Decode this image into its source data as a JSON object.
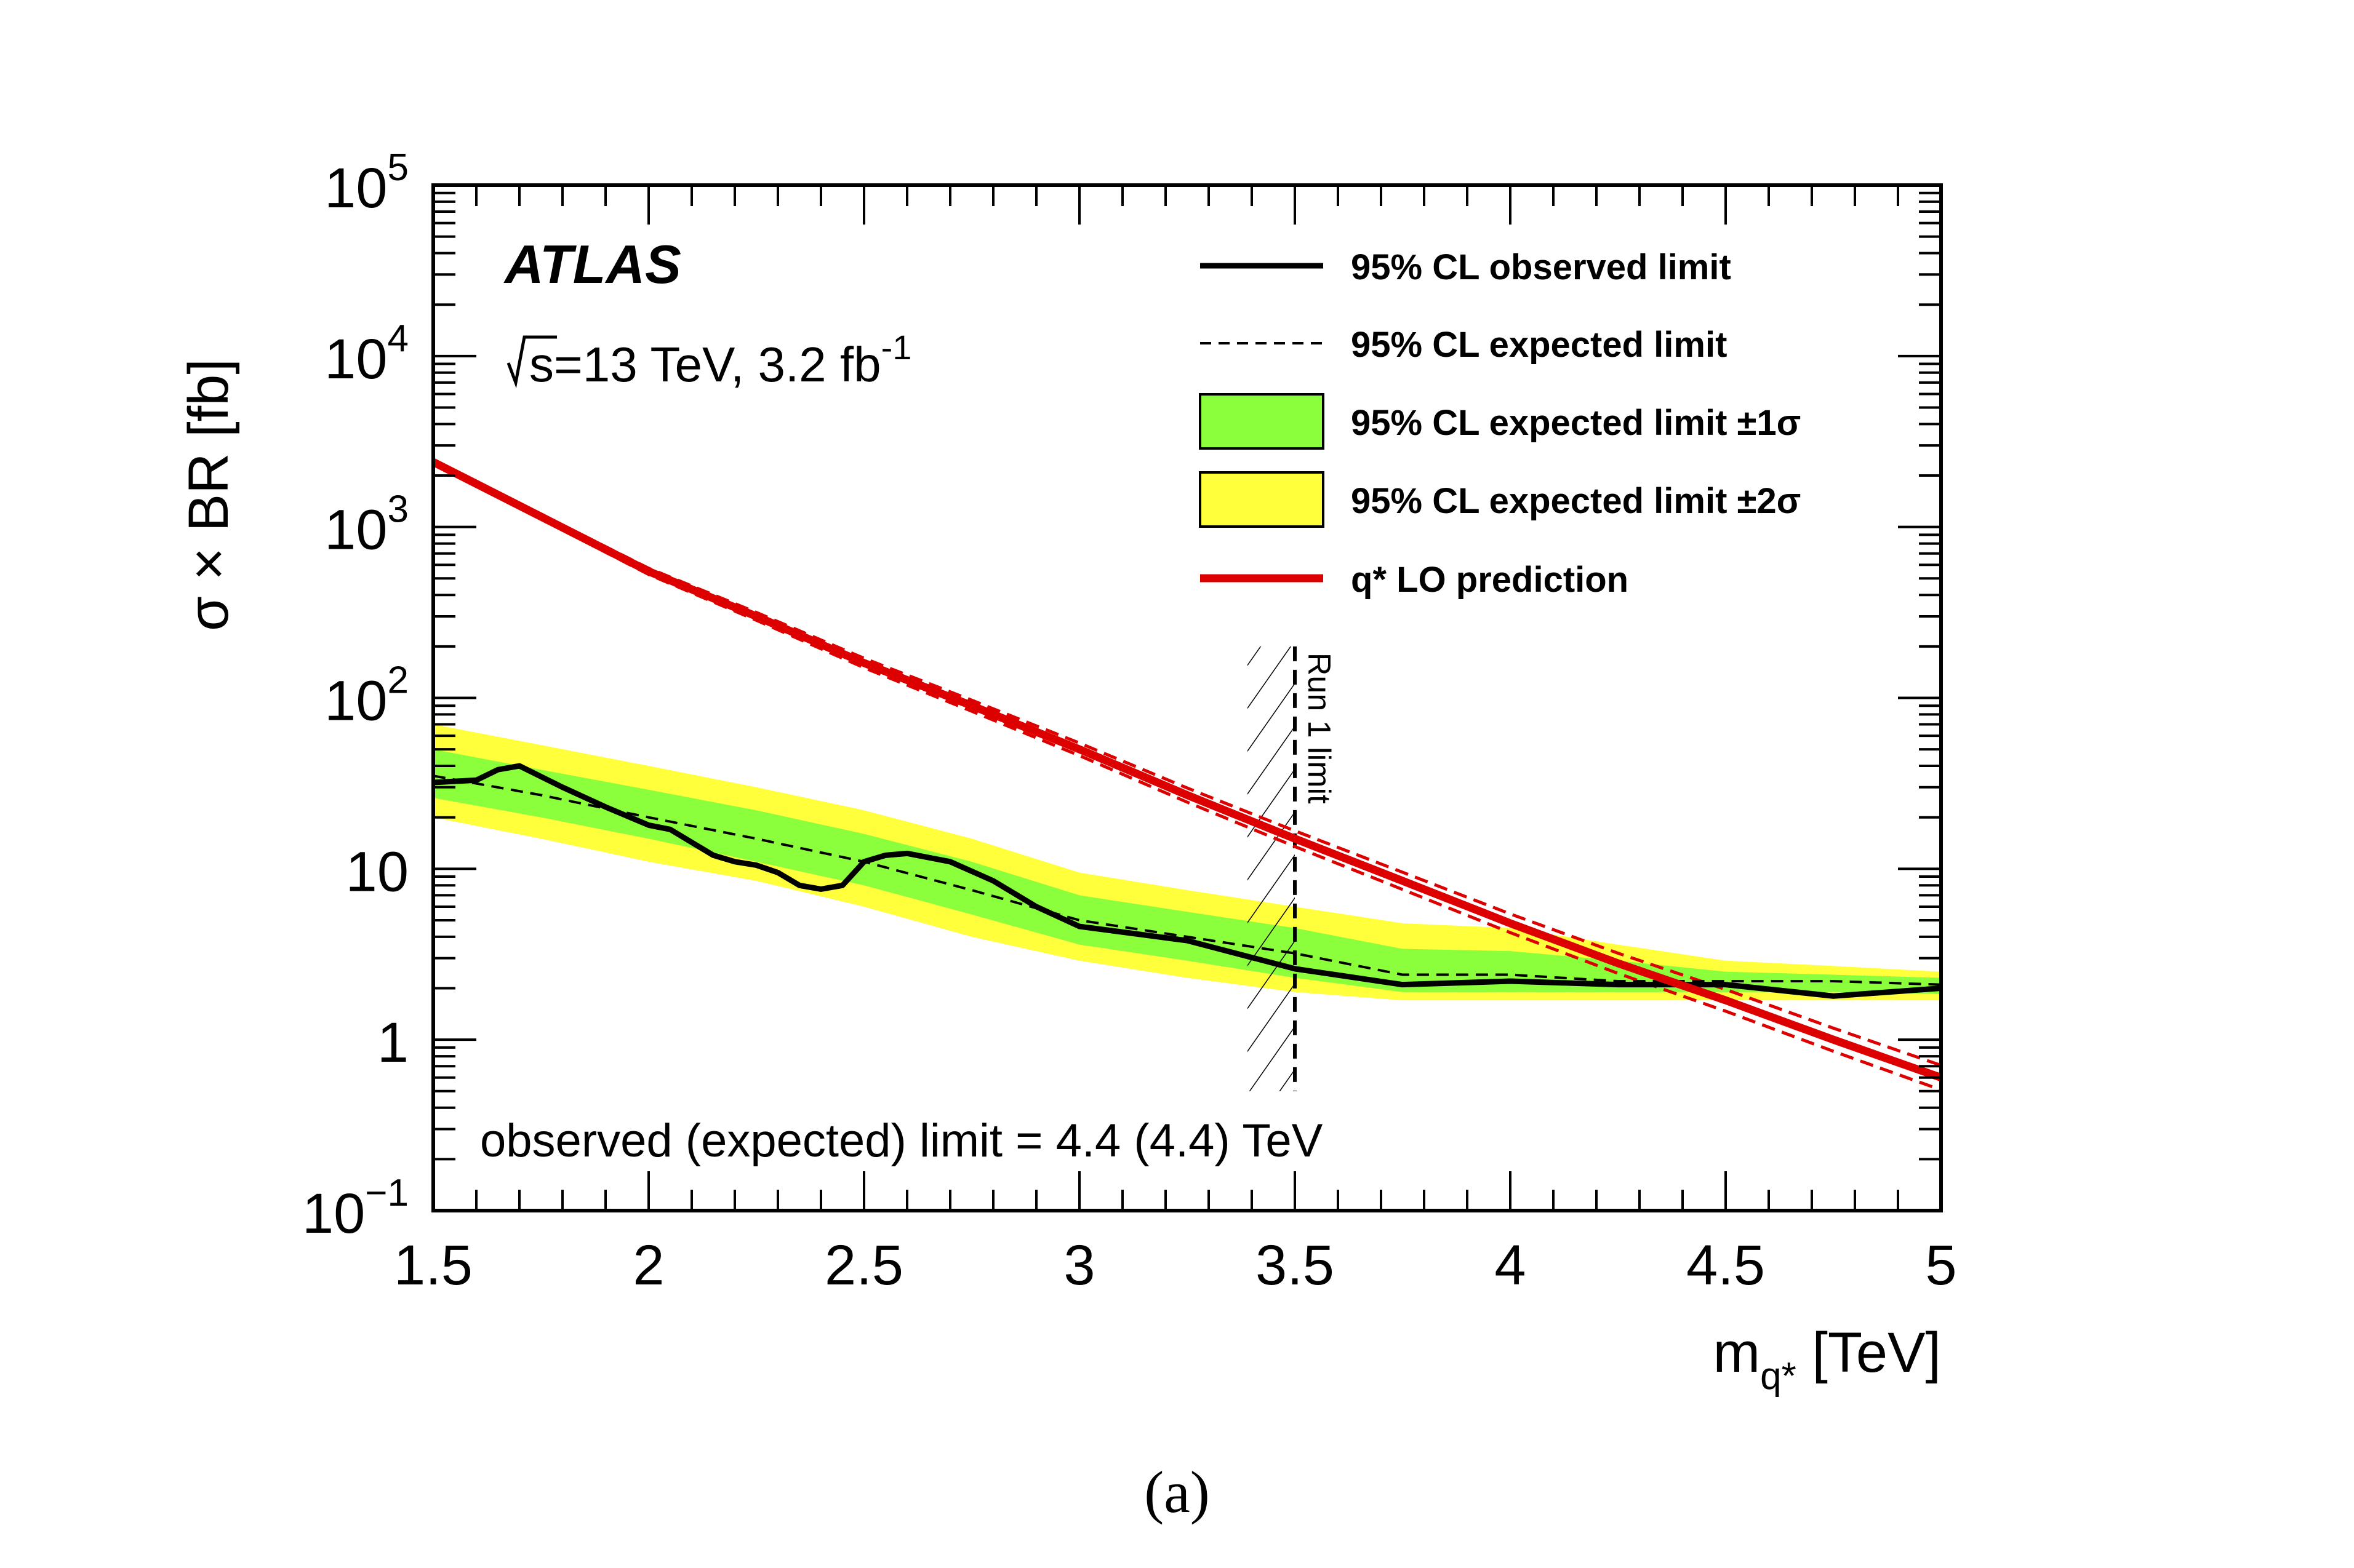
{
  "chart_data": {
    "type": "line",
    "title": "",
    "experiment_label": "ATLAS",
    "energy_label_prefix": "s",
    "energy_label_rest": "=13 TeV, 3.2 fb",
    "energy_label_sup": "-1",
    "xlabel_main": "m",
    "xlabel_sub": "q*",
    "xlabel_unit": " [TeV]",
    "ylabel": "σ × BR [fb]",
    "xlim": [
      1.5,
      5.0
    ],
    "ylim": [
      0.1,
      100000
    ],
    "yscale": "log",
    "x_ticks": [
      "1.5",
      "2",
      "2.5",
      "3",
      "3.5",
      "4",
      "4.5",
      "5"
    ],
    "x_tick_values": [
      1.5,
      2.0,
      2.5,
      3.0,
      3.5,
      4.0,
      4.5,
      5.0
    ],
    "y_ticks": [
      {
        "value": 100000,
        "base": "10",
        "exp": "5"
      },
      {
        "value": 10000,
        "base": "10",
        "exp": "4"
      },
      {
        "value": 1000,
        "base": "10",
        "exp": "3"
      },
      {
        "value": 100,
        "base": "10",
        "exp": "2"
      },
      {
        "value": 10,
        "base": "10",
        "exp": ""
      },
      {
        "value": 1,
        "base": "1",
        "exp": ""
      },
      {
        "value": 0.1,
        "base": "10",
        "exp": "−1"
      }
    ],
    "annotation": "observed (expected) limit = 4.4 (4.4) TeV",
    "run1_label": "Run 1 limit",
    "run1_band": [
      3.39,
      3.5
    ],
    "legend": [
      {
        "label": "95% CL observed limit",
        "style": "solid-black"
      },
      {
        "label": "95% CL expected limit",
        "style": "dashed-black"
      },
      {
        "label": "95% CL expected limit ±1σ",
        "style": "green-box"
      },
      {
        "label": "95% CL expected limit ±2σ",
        "style": "yellow-box"
      },
      {
        "label": "q* LO prediction",
        "style": "solid-red"
      }
    ],
    "legend_position": "top-right",
    "colors": {
      "observed": "#000000",
      "expected": "#000000",
      "band1": "#8cff3c",
      "band2": "#ffff3c",
      "theory": "#dd0000"
    },
    "series": [
      {
        "name": "95% CL observed limit",
        "x": [
          1.5,
          1.6,
          1.65,
          1.7,
          1.8,
          1.9,
          2.0,
          2.05,
          2.15,
          2.2,
          2.25,
          2.3,
          2.35,
          2.4,
          2.45,
          2.5,
          2.55,
          2.6,
          2.7,
          2.8,
          2.9,
          3.0,
          3.25,
          3.5,
          3.75,
          4.0,
          4.25,
          4.5,
          4.75,
          5.0
        ],
        "y": [
          32,
          33,
          38,
          40,
          30,
          23,
          18,
          17,
          12,
          11,
          10.5,
          9.5,
          8,
          7.6,
          8,
          11,
          12,
          12.3,
          11,
          8.5,
          6,
          4.6,
          3.8,
          2.6,
          2.1,
          2.2,
          2.1,
          2.1,
          1.8,
          2.0
        ]
      },
      {
        "name": "95% CL expected limit",
        "x": [
          1.5,
          1.75,
          2.0,
          2.25,
          2.5,
          2.75,
          3.0,
          3.25,
          3.5,
          3.75,
          4.0,
          4.25,
          4.5,
          4.75,
          5.0
        ],
        "y": [
          35,
          27,
          20,
          15,
          11,
          7.5,
          5.0,
          4.0,
          3.2,
          2.4,
          2.4,
          2.2,
          2.2,
          2.2,
          2.1
        ]
      },
      {
        "name": "+1σ",
        "x": [
          1.5,
          1.75,
          2.0,
          2.25,
          2.5,
          2.75,
          3.0,
          3.25,
          3.5,
          3.75,
          4.0,
          4.25,
          4.5,
          4.75,
          5.0
        ],
        "y": [
          50,
          38,
          29,
          22,
          16,
          11,
          7.0,
          5.6,
          4.5,
          3.4,
          3.3,
          2.9,
          2.5,
          2.4,
          2.3
        ]
      },
      {
        "name": "-1σ",
        "x": [
          1.5,
          1.75,
          2.0,
          2.25,
          2.5,
          2.75,
          3.0,
          3.25,
          3.5,
          3.75,
          4.0,
          4.25,
          4.5,
          4.75,
          5.0
        ],
        "y": [
          26,
          20,
          15,
          11,
          8,
          5.4,
          3.6,
          2.9,
          2.3,
          1.9,
          1.9,
          1.9,
          1.9,
          1.9,
          1.85
        ]
      },
      {
        "name": "+2σ",
        "x": [
          1.5,
          1.75,
          2.0,
          2.25,
          2.5,
          2.75,
          3.0,
          3.25,
          3.5,
          3.75,
          4.0,
          4.25,
          4.5,
          4.75,
          5.0
        ],
        "y": [
          70,
          53,
          40,
          30,
          22,
          15,
          9.5,
          7.5,
          6.0,
          4.8,
          4.5,
          3.6,
          2.9,
          2.7,
          2.5
        ]
      },
      {
        "name": "-2σ",
        "x": [
          1.5,
          1.75,
          2.0,
          2.25,
          2.5,
          2.75,
          3.0,
          3.25,
          3.5,
          3.75,
          4.0,
          4.25,
          4.5,
          4.75,
          5.0
        ],
        "y": [
          20,
          15,
          11,
          8.5,
          6,
          4.0,
          2.9,
          2.3,
          1.9,
          1.7,
          1.7,
          1.7,
          1.7,
          1.7,
          1.7
        ]
      },
      {
        "name": "q* LO prediction",
        "x": [
          1.5,
          1.75,
          2.0,
          2.25,
          2.5,
          2.75,
          3.0,
          3.25,
          3.5,
          3.75,
          4.0,
          4.25,
          4.5,
          4.75,
          5.0
        ],
        "y": [
          2400,
          1150,
          550,
          300,
          160,
          90,
          50,
          27,
          15,
          8.5,
          4.8,
          2.8,
          1.7,
          1.0,
          0.6
        ]
      }
    ]
  },
  "caption": "(a)"
}
